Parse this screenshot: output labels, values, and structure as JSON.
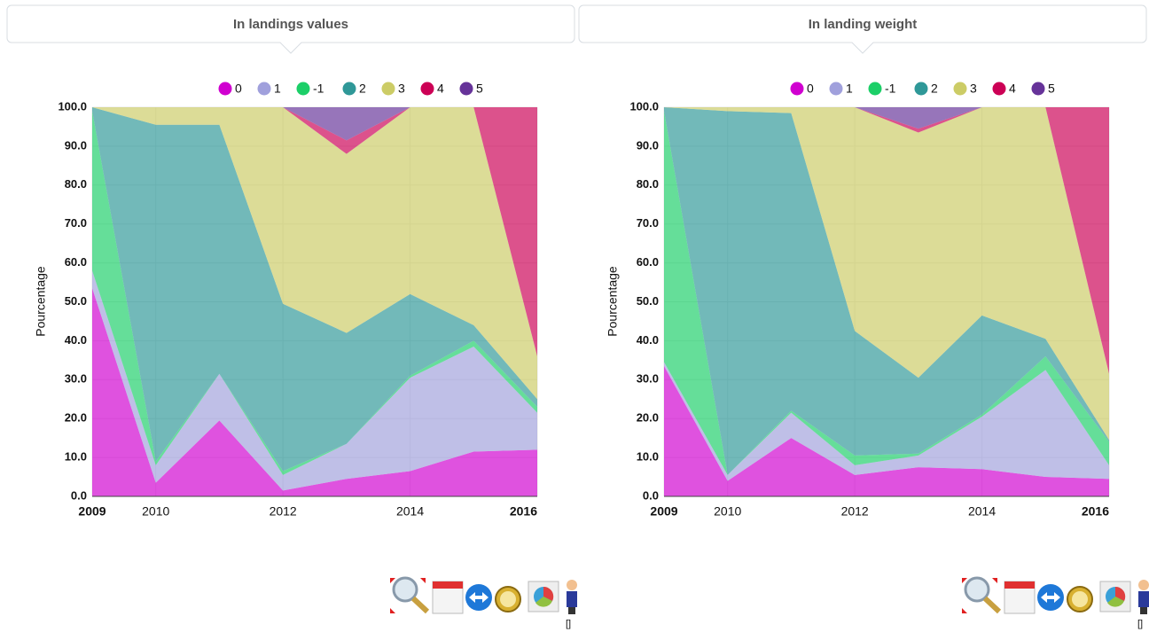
{
  "chart_data": [
    {
      "type": "stacked-area",
      "title": "In landings values",
      "ylabel": "Pourcentage",
      "note": "[]",
      "x": [
        2009,
        2010,
        2011,
        2012,
        2013,
        2014,
        2015,
        2016
      ],
      "xlim": [
        2009,
        2016
      ],
      "xticks": [
        2009,
        2010,
        2012,
        2014,
        2016
      ],
      "ylim": [
        0,
        100
      ],
      "yticks": [
        {
          "value": 0,
          "label": "0.0"
        },
        {
          "value": 10,
          "label": "10.0"
        },
        {
          "value": 20,
          "label": "20.0"
        },
        {
          "value": 30,
          "label": "30.0"
        },
        {
          "value": 40,
          "label": "40.0"
        },
        {
          "value": 50,
          "label": "50.0"
        },
        {
          "value": 60,
          "label": "60.0"
        },
        {
          "value": 70,
          "label": "70.0"
        },
        {
          "value": 80,
          "label": "80.0"
        },
        {
          "value": 90,
          "label": "90.0"
        },
        {
          "value": 100,
          "label": "100.0"
        }
      ],
      "grid": true,
      "series": [
        {
          "name": "0",
          "color": "#d000d0",
          "values": [
            53.5,
            3.5,
            19.5,
            1.5,
            4.5,
            6.5,
            11.5,
            12
          ]
        },
        {
          "name": "1",
          "color": "#a0a0dc",
          "values": [
            4.5,
            4.5,
            12,
            4,
            9,
            24,
            27,
            9.5
          ]
        },
        {
          "name": "-1",
          "color": "#1ccf68",
          "values": [
            41,
            1,
            0,
            1,
            0,
            0.5,
            1.5,
            1.5
          ]
        },
        {
          "name": "2",
          "color": "#2f9898",
          "values": [
            1,
            86.5,
            64,
            43,
            28.5,
            21,
            4,
            2
          ]
        },
        {
          "name": "3",
          "color": "#cccc66",
          "values": [
            0,
            4.5,
            4.5,
            50.5,
            46,
            48,
            56,
            11
          ]
        },
        {
          "name": "4",
          "color": "#cc0055",
          "values": [
            0,
            0,
            0,
            0,
            3.5,
            0,
            0,
            64
          ]
        },
        {
          "name": "5",
          "color": "#663399",
          "values": [
            0,
            0,
            0,
            0,
            8.5,
            0,
            0,
            0
          ]
        }
      ]
    },
    {
      "type": "stacked-area",
      "title": "In landing weight",
      "ylabel": "Pourcentage",
      "note": "[]",
      "x": [
        2009,
        2010,
        2011,
        2012,
        2013,
        2014,
        2015,
        2016
      ],
      "xlim": [
        2009,
        2016
      ],
      "xticks": [
        2009,
        2010,
        2012,
        2014,
        2016
      ],
      "ylim": [
        0,
        100
      ],
      "yticks": [
        {
          "value": 0,
          "label": "0.0"
        },
        {
          "value": 10,
          "label": "10.0"
        },
        {
          "value": 20,
          "label": "20.0"
        },
        {
          "value": 30,
          "label": "30.0"
        },
        {
          "value": 40,
          "label": "40.0"
        },
        {
          "value": 50,
          "label": "50.0"
        },
        {
          "value": 60,
          "label": "60.0"
        },
        {
          "value": 70,
          "label": "70.0"
        },
        {
          "value": 80,
          "label": "80.0"
        },
        {
          "value": 90,
          "label": "90.0"
        },
        {
          "value": 100,
          "label": "100.0"
        }
      ],
      "grid": true,
      "series": [
        {
          "name": "0",
          "color": "#d000d0",
          "values": [
            33.5,
            4,
            15,
            5.5,
            7.5,
            7,
            5,
            4.5
          ]
        },
        {
          "name": "1",
          "color": "#a0a0dc",
          "values": [
            1,
            1.5,
            6.5,
            2.5,
            3,
            13.5,
            27.5,
            3.5
          ]
        },
        {
          "name": "-1",
          "color": "#1ccf68",
          "values": [
            64.5,
            0,
            0.5,
            2.5,
            0.5,
            0.5,
            3.5,
            6
          ]
        },
        {
          "name": "2",
          "color": "#2f9898",
          "values": [
            1,
            93.5,
            76.5,
            32,
            19.5,
            25.5,
            4.5,
            0.5
          ]
        },
        {
          "name": "3",
          "color": "#cccc66",
          "values": [
            0,
            1,
            1.5,
            57.5,
            63,
            53.5,
            59.5,
            17
          ]
        },
        {
          "name": "4",
          "color": "#cc0055",
          "values": [
            0,
            0,
            0,
            0,
            1,
            0,
            0,
            68.5
          ]
        },
        {
          "name": "5",
          "color": "#663399",
          "values": [
            0,
            0,
            0,
            0,
            5.5,
            0,
            0,
            0
          ]
        }
      ]
    }
  ]
}
